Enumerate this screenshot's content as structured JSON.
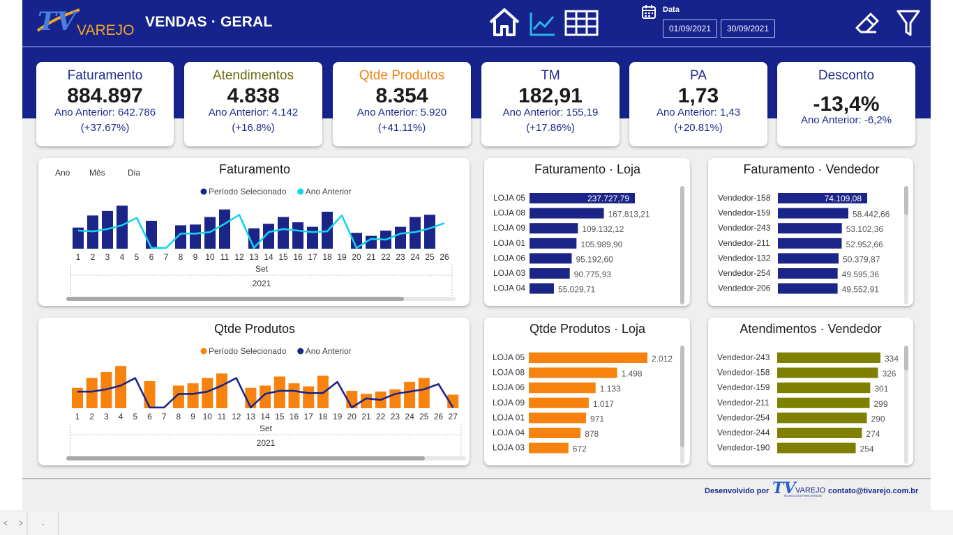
{
  "header": {
    "logo_tv": "TV",
    "logo_varejo": "VAREJO",
    "title": "VENDAS · GERAL",
    "nav_icons": [
      "home-icon",
      "line-chart-icon",
      "table-icon"
    ],
    "date_label": "Data",
    "date_start": "01/09/2021",
    "date_end": "30/09/2021",
    "tools": [
      "eraser-icon",
      "filter-icon"
    ]
  },
  "kpis": [
    {
      "title": "Faturamento",
      "value": "884.897",
      "prev": "Ano Anterior: 642.786",
      "pct": "(+37.67%)",
      "color": "#1e2a8c"
    },
    {
      "title": "Atendimentos",
      "value": "4.838",
      "prev": "Ano Anterior: 4.142",
      "pct": "(+16.8%)",
      "color": "#6b6b10"
    },
    {
      "title": "Qtde Produtos",
      "value": "8.354",
      "prev": "Ano Anterior: 5.920",
      "pct": "(+41.11%)",
      "color": "#f08010"
    },
    {
      "title": "TM",
      "value": "182,91",
      "prev": "Ano Anterior: 155,19",
      "pct": "(+17.86%)",
      "color": "#1e2a8c"
    },
    {
      "title": "PA",
      "value": "1,73",
      "prev": "Ano Anterior: 1,43",
      "pct": "(+20.81%)",
      "color": "#1e2a8c"
    },
    {
      "title": "Desconto",
      "value": "-13,4%",
      "prev": "Ano Anterior: -6,2%",
      "pct": "",
      "color": "#1e2a8c"
    }
  ],
  "colors": {
    "navy": "#1b2587",
    "cyan": "#18d0f0",
    "orange": "#f7820e",
    "olive": "#7f7f00",
    "header_blue": "#16238c"
  },
  "drill": {
    "ano": "Ano",
    "mes": "Mês",
    "dia": "Dia"
  },
  "chart_data": [
    {
      "type": "bar",
      "title": "Faturamento",
      "legend": [
        "Período Selecionado",
        "Ano Anterior"
      ],
      "categories": [
        "1",
        "2",
        "3",
        "4",
        "5",
        "6",
        "7",
        "8",
        "9",
        "10",
        "11",
        "12",
        "13",
        "14",
        "15",
        "16",
        "17",
        "18",
        "19",
        "20",
        "21",
        "22",
        "23",
        "24",
        "25",
        "26"
      ],
      "x_group_label": "Set",
      "x_year_label": "2021",
      "series": [
        {
          "name": "Período Selecionado",
          "type": "bar",
          "values": [
            28,
            44,
            50,
            57,
            0,
            37,
            0,
            31,
            32,
            42,
            52,
            0,
            27,
            33,
            42,
            35,
            29,
            49,
            0,
            21,
            17,
            24,
            29,
            42,
            45,
            0
          ]
        },
        {
          "name": "Ano Anterior",
          "type": "line",
          "values": [
            24,
            23,
            26,
            31,
            41,
            1,
            1,
            20,
            20,
            22,
            33,
            45,
            1,
            22,
            26,
            24,
            22,
            23,
            44,
            1,
            13,
            12,
            20,
            22,
            27,
            34
          ]
        }
      ],
      "ylim": [
        0,
        60
      ]
    },
    {
      "type": "bar",
      "title": "Qtde Produtos",
      "legend": [
        "Período Selecionado",
        "Ano Anterior"
      ],
      "categories": [
        "1",
        "2",
        "3",
        "4",
        "5",
        "6",
        "7",
        "8",
        "9",
        "10",
        "11",
        "12",
        "13",
        "14",
        "15",
        "16",
        "17",
        "18",
        "19",
        "20",
        "21",
        "22",
        "23",
        "24",
        "25",
        "26",
        "27"
      ],
      "x_group_label": "Set",
      "x_year_label": "2021",
      "series": [
        {
          "name": "Período Selecionado",
          "type": "bar",
          "values": [
            27,
            40,
            48,
            56,
            0,
            36,
            0,
            30,
            33,
            40,
            46,
            0,
            27,
            30,
            42,
            33,
            29,
            43,
            0,
            23,
            19,
            22,
            25,
            35,
            40,
            0,
            18
          ]
        },
        {
          "name": "Ano Anterior",
          "type": "line",
          "values": [
            22,
            22,
            25,
            30,
            40,
            1,
            1,
            19,
            19,
            22,
            30,
            40,
            1,
            19,
            23,
            23,
            20,
            20,
            35,
            1,
            13,
            11,
            19,
            22,
            25,
            32,
            1
          ]
        }
      ],
      "ylim": [
        0,
        60
      ]
    },
    {
      "type": "bar",
      "orientation": "horizontal",
      "title": "Faturamento · Loja",
      "categories": [
        "LOJA 05",
        "LOJA 08",
        "LOJA 09",
        "LOJA 01",
        "LOJA 06",
        "LOJA 03",
        "LOJA 04"
      ],
      "values": [
        237727.79,
        167813.21,
        109132.12,
        105989.9,
        95192.6,
        90775.93,
        55029.71
      ],
      "labels": [
        "237.727,79",
        "167.813,21",
        "109.132,12",
        "105.989,90",
        "95.192,60",
        "90.775,93",
        "55.029,71"
      ]
    },
    {
      "type": "bar",
      "orientation": "horizontal",
      "title": "Faturamento · Vendedor",
      "categories": [
        "Vendedor-158",
        "Vendedor-159",
        "Vendedor-243",
        "Vendedor-211",
        "Vendedor-132",
        "Vendedor-254",
        "Vendedor-206"
      ],
      "values": [
        74109.08,
        58442.66,
        53102.36,
        52952.66,
        50379.87,
        49595.36,
        49552.91
      ],
      "labels": [
        "74.109,08",
        "58.442,66",
        "53.102,36",
        "52.952,66",
        "50.379,87",
        "49.595,36",
        "49.552,91"
      ]
    },
    {
      "type": "bar",
      "orientation": "horizontal",
      "title": "Qtde Produtos · Loja",
      "categories": [
        "LOJA 05",
        "LOJA 08",
        "LOJA 06",
        "LOJA 09",
        "LOJA 01",
        "LOJA 04",
        "LOJA 03"
      ],
      "values": [
        2012,
        1498,
        1133,
        1017,
        971,
        878,
        672
      ],
      "labels": [
        "2.012",
        "1.498",
        "1.133",
        "1.017",
        "971",
        "878",
        "672"
      ]
    },
    {
      "type": "bar",
      "orientation": "horizontal",
      "title": "Atendimentos · Vendedor",
      "categories": [
        "Vendedor-243",
        "Vendedor-158",
        "Vendedor-159",
        "Vendedor-211",
        "Vendedor-254",
        "Vendedor-244",
        "Vendedor-190"
      ],
      "values": [
        334,
        326,
        301,
        299,
        290,
        274,
        254
      ],
      "labels": [
        "334",
        "326",
        "301",
        "299",
        "290",
        "274",
        "254"
      ]
    }
  ],
  "footer": {
    "dev": "Desenvolvido por",
    "logo_tv": "TV",
    "logo_varejo": "VAREJO",
    "logo_tag": "TECNOLOGIA PARA VENDAS",
    "email": "contato@tivarejo.com.br"
  },
  "statusbar": {
    "dot": "."
  }
}
